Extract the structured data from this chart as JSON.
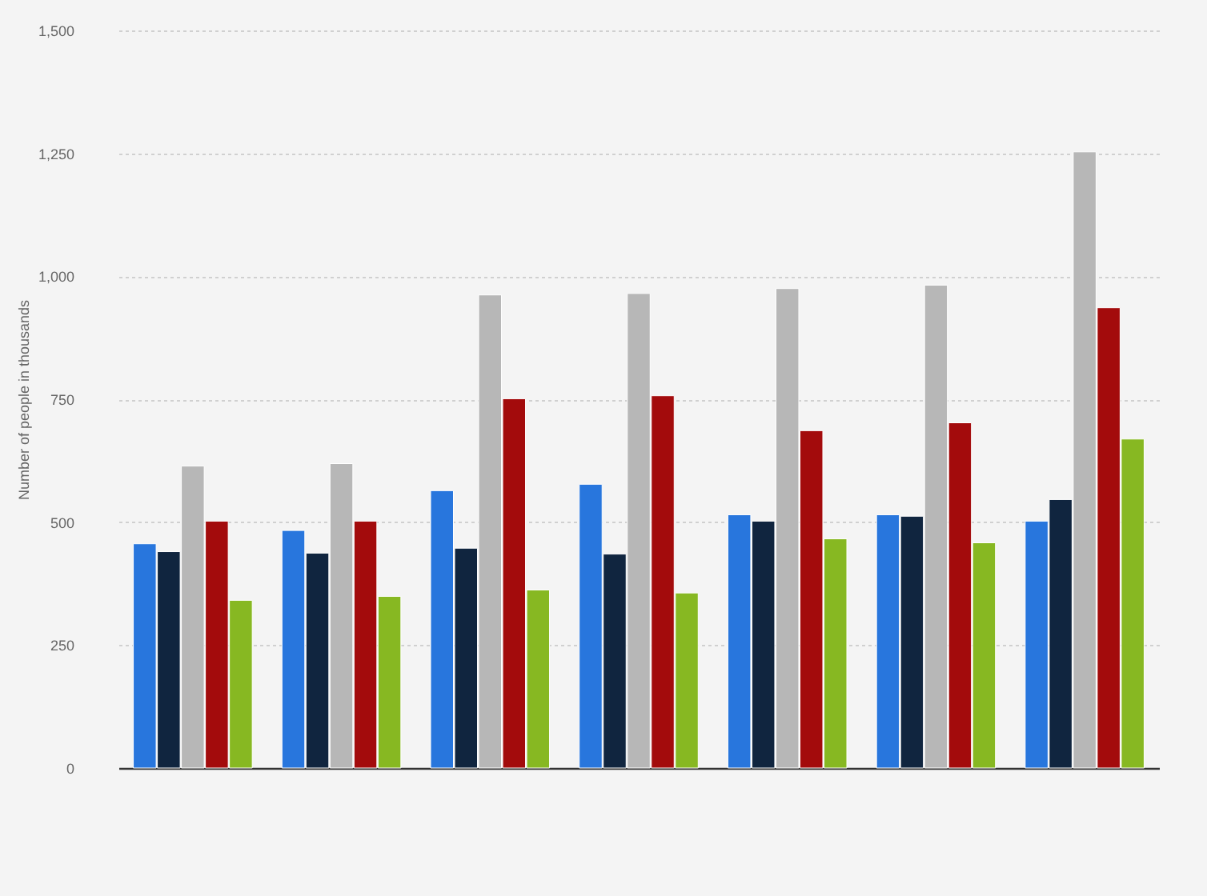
{
  "chart_data": {
    "type": "bar",
    "ylabel": "Number of people in thousands",
    "categories": [
      null,
      null,
      null,
      null,
      null,
      null,
      null
    ],
    "series": [
      {
        "color": "#2876dd",
        "values": [
          456,
          483,
          564,
          577,
          515,
          515,
          502
        ]
      },
      {
        "color": "#10253f",
        "values": [
          440,
          437,
          447,
          435,
          502,
          512,
          546
        ]
      },
      {
        "color": "#b7b7b7",
        "values": [
          614,
          619,
          962,
          965,
          975,
          982,
          1253
        ]
      },
      {
        "color": "#a30b0c",
        "values": [
          502,
          502,
          751,
          757,
          686,
          702,
          936
        ]
      },
      {
        "color": "#87b822",
        "values": [
          341,
          349,
          362,
          356,
          466,
          458,
          669
        ]
      }
    ],
    "ylim": [
      0,
      1500
    ],
    "yticks": [
      0,
      250,
      500,
      750,
      {
        "value": 1000,
        "label": "1,000"
      },
      {
        "value": 1250,
        "label": "1,250"
      },
      {
        "value": 1500,
        "label": "1,500"
      }
    ],
    "grid": "y",
    "legend": false
  }
}
